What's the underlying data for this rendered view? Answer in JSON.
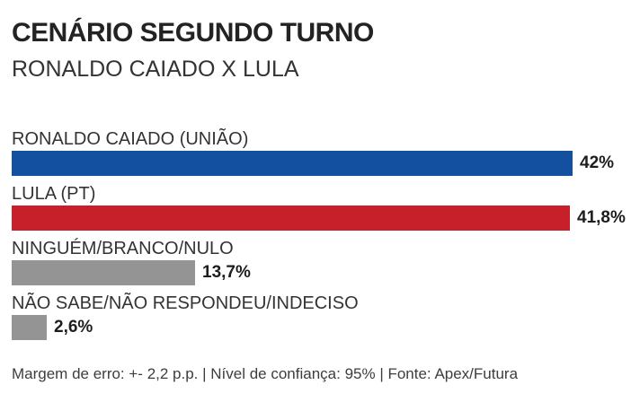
{
  "header": {
    "title": "CENÁRIO SEGUNDO TURNO",
    "subtitle": "RONALDO CAIADO X LULA"
  },
  "chart_data": {
    "type": "bar",
    "orientation": "horizontal",
    "title": "CENÁRIO SEGUNDO TURNO",
    "subtitle": "RONALDO CAIADO X LULA",
    "categories": [
      "RONALDO CAIADO (UNIÃO)",
      "LULA (PT)",
      "NINGUÉM/BRANCO/NULO",
      "NÃO SABE/NÃO RESPONDEU/INDECISO"
    ],
    "values": [
      42,
      41.8,
      13.7,
      2.6
    ],
    "xlim": [
      0,
      42
    ],
    "grid": false,
    "legend": "none",
    "rows": [
      {
        "label": "RONALDO CAIADO (UNIÃO)",
        "value": 42,
        "value_label": "42%",
        "color": "#1450A0"
      },
      {
        "label": "LULA (PT)",
        "value": 41.8,
        "value_label": "41,8%",
        "color": "#C8202A"
      },
      {
        "label": "NINGUÉM/BRANCO/NULO",
        "value": 13.7,
        "value_label": "13,7%",
        "color": "#949494"
      },
      {
        "label": "NÃO SABE/NÃO RESPONDEU/INDECISO",
        "value": 2.6,
        "value_label": "2,6%",
        "color": "#949494"
      }
    ]
  },
  "footer": {
    "text": "Margem de erro: +- 2,2 p.p. | Nível de confiança: 95% | Fonte: Apex/Futura"
  }
}
